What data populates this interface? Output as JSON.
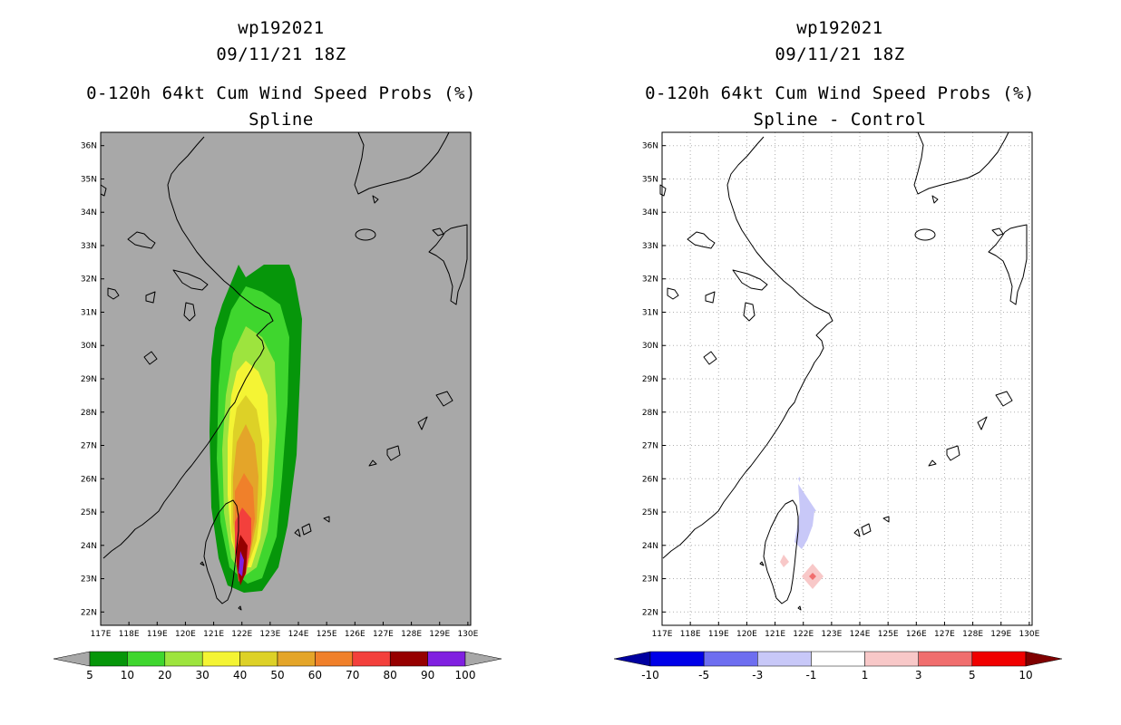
{
  "left": {
    "title_lines": [
      "wp192021",
      "09/11/21 18Z",
      "0-120h 64kt Cum Wind Speed Probs (%)",
      "Spline"
    ],
    "colorbar": {
      "labels": [
        "5",
        "10",
        "20",
        "30",
        "40",
        "50",
        "60",
        "70",
        "80",
        "90",
        "100"
      ],
      "colors": [
        "#06960a",
        "#3fd62e",
        "#9de43e",
        "#f4f434",
        "#ddd127",
        "#e4a529",
        "#f0802a",
        "#f3403c",
        "#960000",
        "#8020e0"
      ],
      "end_color": "#a8a8a8"
    }
  },
  "right": {
    "title_lines": [
      "wp192021",
      "09/11/21 18Z",
      "0-120h 64kt Cum Wind Speed Probs (%)",
      "Spline - Control"
    ],
    "colorbar": {
      "labels": [
        "-10",
        "-5",
        "-3",
        "-1",
        "1",
        "3",
        "5",
        "10"
      ],
      "colors": [
        "#0000e8",
        "#6e6ef0",
        "#c8c8f8",
        "#ffffff",
        "#f8c8c8",
        "#f06e6e",
        "#f00000"
      ],
      "end_low": "#0000a0",
      "end_high": "#800000"
    }
  },
  "axes": {
    "x_ticks": [
      "117E",
      "118E",
      "119E",
      "120E",
      "121E",
      "122E",
      "123E",
      "124E",
      "125E",
      "126E",
      "127E",
      "128E",
      "129E",
      "130E"
    ],
    "y_ticks": [
      "36N",
      "35N",
      "34N",
      "33N",
      "32N",
      "31N",
      "30N",
      "29N",
      "28N",
      "27N",
      "26N",
      "25N",
      "24N",
      "23N",
      "22N"
    ],
    "lon_range": [
      117,
      130.1
    ],
    "lat_range": [
      21.6,
      36.4
    ]
  },
  "colors": {
    "map_background_left": "#a8a8a8",
    "map_background_right": "#ffffff",
    "coast": "#000000",
    "grid": "#b0b0b0"
  }
}
